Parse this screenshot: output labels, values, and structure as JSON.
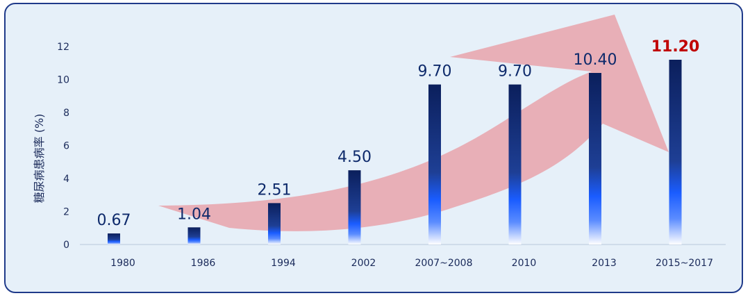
{
  "chart_data": {
    "type": "bar",
    "title": "",
    "xlabel": "",
    "ylabel": "糖尿病患病率 (%)",
    "ylim": [
      0,
      12
    ],
    "yticks": [
      0,
      2,
      4,
      6,
      8,
      10,
      12
    ],
    "categories": [
      "1980",
      "1986",
      "1994",
      "2002",
      "2007~2008",
      "2010",
      "2013",
      "2015~2017"
    ],
    "values": [
      0.67,
      1.04,
      2.51,
      4.5,
      9.7,
      9.7,
      10.4,
      11.2
    ],
    "data_labels": [
      "0.67",
      "1.04",
      "2.51",
      "4.50",
      "9.70",
      "9.70",
      "10.40",
      "11.20"
    ],
    "highlight_index": 7,
    "colors": {
      "bar_top": "#0b1f5c",
      "bar_mid": "#1a5cff",
      "bar_bottom": "#ffffff",
      "highlight_label": "#c00000",
      "label": "#0e2a6b",
      "arrow": "#e8a0a8",
      "background": "#e6f0f9",
      "border": "#1f3a8a"
    },
    "annotations": [
      "trend-arrow"
    ]
  }
}
